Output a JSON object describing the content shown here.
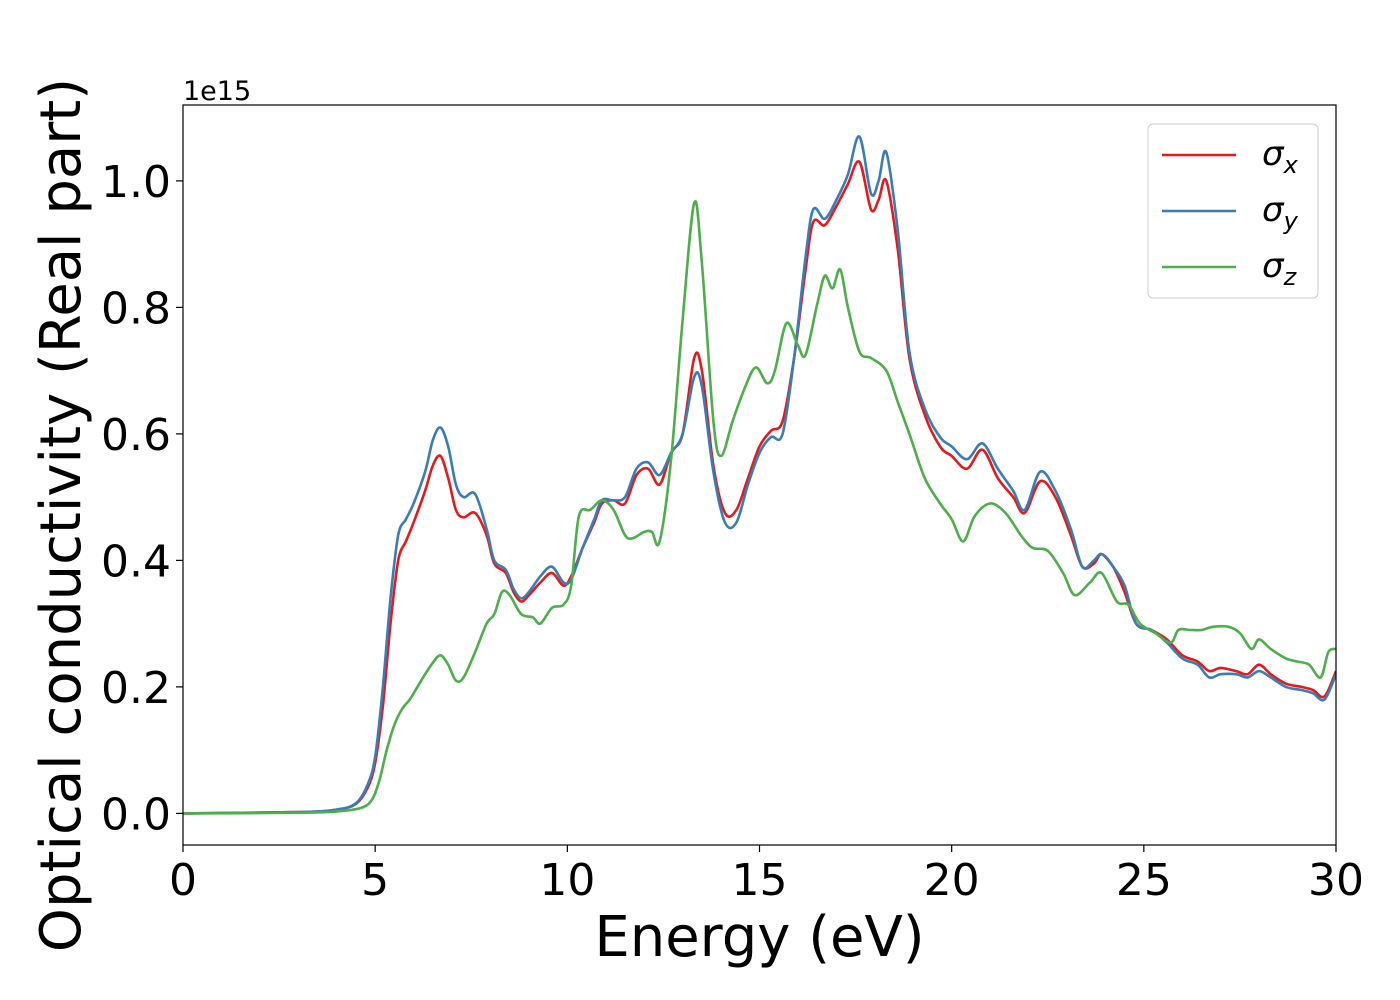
{
  "chart_data": {
    "type": "line",
    "xlabel": "Energy (eV)",
    "ylabel": "Optical conductivity (Real part)",
    "y_offset_label": "1e15",
    "xlim": [
      0,
      30
    ],
    "ylim": [
      -0.05,
      1.12
    ],
    "x_ticks": [
      0,
      5,
      10,
      15,
      20,
      25,
      30
    ],
    "x_tick_labels": [
      "0",
      "5",
      "10",
      "15",
      "20",
      "25",
      "30"
    ],
    "y_ticks": [
      0.0,
      0.2,
      0.4,
      0.6,
      0.8,
      1.0
    ],
    "y_tick_labels": [
      "0.0",
      "0.2",
      "0.4",
      "0.6",
      "0.8",
      "1.0"
    ],
    "grid": false,
    "legend_position": "top-right",
    "series": [
      {
        "name": "σ",
        "sub": "x",
        "color": "#e41a1c",
        "points": [
          [
            0,
            0
          ],
          [
            3,
            0.002
          ],
          [
            4,
            0.006
          ],
          [
            4.5,
            0.015
          ],
          [
            4.8,
            0.04
          ],
          [
            5.0,
            0.08
          ],
          [
            5.2,
            0.17
          ],
          [
            5.4,
            0.3
          ],
          [
            5.6,
            0.4
          ],
          [
            5.8,
            0.43
          ],
          [
            6.0,
            0.46
          ],
          [
            6.3,
            0.51
          ],
          [
            6.5,
            0.55
          ],
          [
            6.7,
            0.565
          ],
          [
            6.9,
            0.53
          ],
          [
            7.1,
            0.48
          ],
          [
            7.3,
            0.468
          ],
          [
            7.6,
            0.475
          ],
          [
            7.9,
            0.44
          ],
          [
            8.1,
            0.395
          ],
          [
            8.4,
            0.38
          ],
          [
            8.6,
            0.35
          ],
          [
            8.8,
            0.335
          ],
          [
            9.0,
            0.345
          ],
          [
            9.3,
            0.365
          ],
          [
            9.6,
            0.38
          ],
          [
            9.9,
            0.36
          ],
          [
            10.1,
            0.375
          ],
          [
            10.4,
            0.42
          ],
          [
            10.7,
            0.46
          ],
          [
            10.9,
            0.49
          ],
          [
            11.2,
            0.495
          ],
          [
            11.5,
            0.49
          ],
          [
            11.8,
            0.535
          ],
          [
            12.1,
            0.545
          ],
          [
            12.4,
            0.52
          ],
          [
            12.7,
            0.57
          ],
          [
            13.0,
            0.6
          ],
          [
            13.3,
            0.72
          ],
          [
            13.5,
            0.7
          ],
          [
            13.8,
            0.55
          ],
          [
            14.1,
            0.475
          ],
          [
            14.4,
            0.48
          ],
          [
            14.7,
            0.53
          ],
          [
            15.0,
            0.58
          ],
          [
            15.3,
            0.605
          ],
          [
            15.6,
            0.62
          ],
          [
            15.9,
            0.72
          ],
          [
            16.2,
            0.86
          ],
          [
            16.4,
            0.935
          ],
          [
            16.7,
            0.93
          ],
          [
            17.0,
            0.96
          ],
          [
            17.3,
            0.995
          ],
          [
            17.6,
            1.03
          ],
          [
            17.9,
            0.955
          ],
          [
            18.1,
            0.97
          ],
          [
            18.3,
            1.0
          ],
          [
            18.6,
            0.89
          ],
          [
            18.9,
            0.72
          ],
          [
            19.3,
            0.63
          ],
          [
            19.7,
            0.58
          ],
          [
            20.0,
            0.565
          ],
          [
            20.4,
            0.545
          ],
          [
            20.8,
            0.575
          ],
          [
            21.2,
            0.53
          ],
          [
            21.6,
            0.5
          ],
          [
            21.9,
            0.475
          ],
          [
            22.3,
            0.525
          ],
          [
            22.7,
            0.5
          ],
          [
            23.1,
            0.44
          ],
          [
            23.4,
            0.39
          ],
          [
            23.7,
            0.395
          ],
          [
            23.9,
            0.41
          ],
          [
            24.2,
            0.39
          ],
          [
            24.5,
            0.35
          ],
          [
            24.8,
            0.3
          ],
          [
            25.2,
            0.29
          ],
          [
            25.6,
            0.275
          ],
          [
            26.0,
            0.25
          ],
          [
            26.4,
            0.24
          ],
          [
            26.7,
            0.225
          ],
          [
            27.0,
            0.23
          ],
          [
            27.4,
            0.225
          ],
          [
            27.7,
            0.22
          ],
          [
            28.0,
            0.235
          ],
          [
            28.3,
            0.22
          ],
          [
            28.7,
            0.205
          ],
          [
            29.1,
            0.2
          ],
          [
            29.4,
            0.195
          ],
          [
            29.7,
            0.185
          ],
          [
            30.0,
            0.225
          ]
        ]
      },
      {
        "name": "σ",
        "sub": "y",
        "color": "#377eb8",
        "points": [
          [
            0,
            0
          ],
          [
            3,
            0.002
          ],
          [
            4,
            0.006
          ],
          [
            4.5,
            0.016
          ],
          [
            4.8,
            0.045
          ],
          [
            5.0,
            0.09
          ],
          [
            5.2,
            0.2
          ],
          [
            5.4,
            0.34
          ],
          [
            5.6,
            0.44
          ],
          [
            5.8,
            0.465
          ],
          [
            6.0,
            0.49
          ],
          [
            6.3,
            0.54
          ],
          [
            6.5,
            0.59
          ],
          [
            6.7,
            0.61
          ],
          [
            6.9,
            0.58
          ],
          [
            7.1,
            0.52
          ],
          [
            7.3,
            0.5
          ],
          [
            7.6,
            0.505
          ],
          [
            7.9,
            0.45
          ],
          [
            8.1,
            0.4
          ],
          [
            8.4,
            0.385
          ],
          [
            8.6,
            0.355
          ],
          [
            8.8,
            0.34
          ],
          [
            9.0,
            0.35
          ],
          [
            9.3,
            0.375
          ],
          [
            9.6,
            0.39
          ],
          [
            9.9,
            0.365
          ],
          [
            10.1,
            0.37
          ],
          [
            10.4,
            0.42
          ],
          [
            10.7,
            0.465
          ],
          [
            10.9,
            0.495
          ],
          [
            11.2,
            0.495
          ],
          [
            11.5,
            0.5
          ],
          [
            11.8,
            0.545
          ],
          [
            12.1,
            0.555
          ],
          [
            12.4,
            0.535
          ],
          [
            12.7,
            0.57
          ],
          [
            13.0,
            0.6
          ],
          [
            13.3,
            0.69
          ],
          [
            13.5,
            0.675
          ],
          [
            13.8,
            0.54
          ],
          [
            14.1,
            0.46
          ],
          [
            14.4,
            0.46
          ],
          [
            14.7,
            0.52
          ],
          [
            15.0,
            0.57
          ],
          [
            15.3,
            0.595
          ],
          [
            15.6,
            0.6
          ],
          [
            15.9,
            0.72
          ],
          [
            16.2,
            0.88
          ],
          [
            16.4,
            0.955
          ],
          [
            16.7,
            0.94
          ],
          [
            17.0,
            0.97
          ],
          [
            17.3,
            1.01
          ],
          [
            17.6,
            1.07
          ],
          [
            17.9,
            0.98
          ],
          [
            18.1,
            1.0
          ],
          [
            18.3,
            1.045
          ],
          [
            18.6,
            0.92
          ],
          [
            18.9,
            0.73
          ],
          [
            19.3,
            0.64
          ],
          [
            19.7,
            0.595
          ],
          [
            20.0,
            0.58
          ],
          [
            20.4,
            0.56
          ],
          [
            20.8,
            0.585
          ],
          [
            21.2,
            0.545
          ],
          [
            21.6,
            0.51
          ],
          [
            21.9,
            0.48
          ],
          [
            22.3,
            0.54
          ],
          [
            22.7,
            0.51
          ],
          [
            23.1,
            0.45
          ],
          [
            23.4,
            0.39
          ],
          [
            23.7,
            0.4
          ],
          [
            23.9,
            0.41
          ],
          [
            24.2,
            0.39
          ],
          [
            24.5,
            0.36
          ],
          [
            24.8,
            0.3
          ],
          [
            25.2,
            0.29
          ],
          [
            25.6,
            0.27
          ],
          [
            26.0,
            0.245
          ],
          [
            26.4,
            0.235
          ],
          [
            26.7,
            0.215
          ],
          [
            27.0,
            0.22
          ],
          [
            27.4,
            0.22
          ],
          [
            27.7,
            0.215
          ],
          [
            28.0,
            0.225
          ],
          [
            28.3,
            0.215
          ],
          [
            28.7,
            0.2
          ],
          [
            29.1,
            0.195
          ],
          [
            29.4,
            0.19
          ],
          [
            29.7,
            0.18
          ],
          [
            30.0,
            0.22
          ]
        ]
      },
      {
        "name": "σ",
        "sub": "z",
        "color": "#4daf4a",
        "points": [
          [
            0,
            0
          ],
          [
            3,
            0.001
          ],
          [
            4,
            0.003
          ],
          [
            4.6,
            0.008
          ],
          [
            4.9,
            0.02
          ],
          [
            5.1,
            0.05
          ],
          [
            5.3,
            0.1
          ],
          [
            5.5,
            0.14
          ],
          [
            5.7,
            0.165
          ],
          [
            5.9,
            0.18
          ],
          [
            6.1,
            0.2
          ],
          [
            6.3,
            0.22
          ],
          [
            6.5,
            0.238
          ],
          [
            6.7,
            0.25
          ],
          [
            6.9,
            0.235
          ],
          [
            7.1,
            0.21
          ],
          [
            7.3,
            0.215
          ],
          [
            7.6,
            0.255
          ],
          [
            7.9,
            0.3
          ],
          [
            8.1,
            0.315
          ],
          [
            8.3,
            0.35
          ],
          [
            8.5,
            0.345
          ],
          [
            8.8,
            0.315
          ],
          [
            9.1,
            0.31
          ],
          [
            9.3,
            0.3
          ],
          [
            9.6,
            0.325
          ],
          [
            9.9,
            0.33
          ],
          [
            10.1,
            0.36
          ],
          [
            10.3,
            0.47
          ],
          [
            10.6,
            0.48
          ],
          [
            10.9,
            0.495
          ],
          [
            11.2,
            0.48
          ],
          [
            11.5,
            0.44
          ],
          [
            11.7,
            0.435
          ],
          [
            12.0,
            0.445
          ],
          [
            12.2,
            0.445
          ],
          [
            12.4,
            0.43
          ],
          [
            12.7,
            0.56
          ],
          [
            13.0,
            0.78
          ],
          [
            13.3,
            0.965
          ],
          [
            13.5,
            0.87
          ],
          [
            13.8,
            0.62
          ],
          [
            14.0,
            0.565
          ],
          [
            14.3,
            0.62
          ],
          [
            14.6,
            0.67
          ],
          [
            14.9,
            0.705
          ],
          [
            15.2,
            0.68
          ],
          [
            15.4,
            0.7
          ],
          [
            15.7,
            0.775
          ],
          [
            16.0,
            0.74
          ],
          [
            16.2,
            0.725
          ],
          [
            16.5,
            0.805
          ],
          [
            16.7,
            0.85
          ],
          [
            16.9,
            0.83
          ],
          [
            17.1,
            0.86
          ],
          [
            17.3,
            0.8
          ],
          [
            17.6,
            0.73
          ],
          [
            17.9,
            0.72
          ],
          [
            18.3,
            0.7
          ],
          [
            18.6,
            0.65
          ],
          [
            18.9,
            0.6
          ],
          [
            19.3,
            0.53
          ],
          [
            19.7,
            0.49
          ],
          [
            20.0,
            0.465
          ],
          [
            20.3,
            0.43
          ],
          [
            20.6,
            0.47
          ],
          [
            21.0,
            0.49
          ],
          [
            21.4,
            0.475
          ],
          [
            21.8,
            0.44
          ],
          [
            22.1,
            0.42
          ],
          [
            22.5,
            0.415
          ],
          [
            22.9,
            0.38
          ],
          [
            23.2,
            0.345
          ],
          [
            23.6,
            0.365
          ],
          [
            23.9,
            0.38
          ],
          [
            24.3,
            0.335
          ],
          [
            24.6,
            0.33
          ],
          [
            24.9,
            0.3
          ],
          [
            25.3,
            0.285
          ],
          [
            25.7,
            0.27
          ],
          [
            25.9,
            0.29
          ],
          [
            26.2,
            0.29
          ],
          [
            26.5,
            0.29
          ],
          [
            26.8,
            0.295
          ],
          [
            27.2,
            0.295
          ],
          [
            27.5,
            0.285
          ],
          [
            27.8,
            0.26
          ],
          [
            28.0,
            0.275
          ],
          [
            28.3,
            0.26
          ],
          [
            28.7,
            0.245
          ],
          [
            29.0,
            0.24
          ],
          [
            29.3,
            0.235
          ],
          [
            29.6,
            0.215
          ],
          [
            29.8,
            0.255
          ],
          [
            30.0,
            0.26
          ]
        ]
      }
    ]
  }
}
